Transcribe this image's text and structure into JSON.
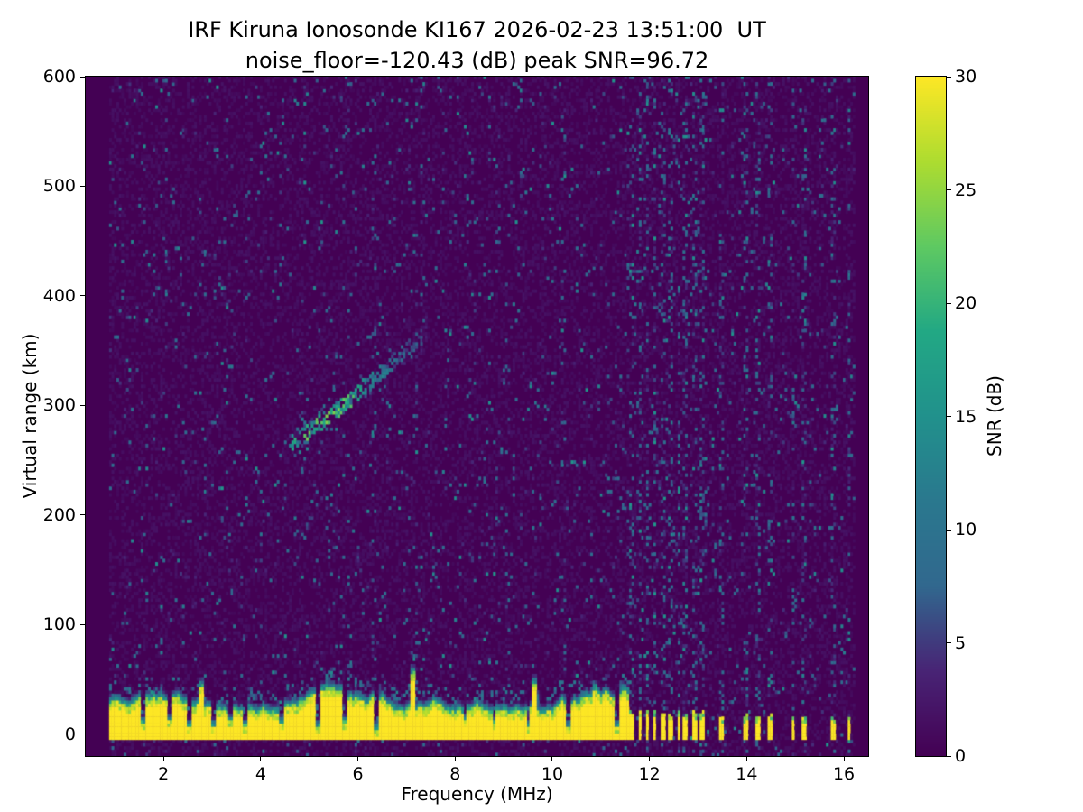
{
  "chart_data": {
    "type": "heatmap",
    "title": "IRF Kiruna Ionosonde KI167 2026-02-23 13:51:00  UT",
    "subtitle": "noise_floor=-120.43 (dB) peak SNR=96.72",
    "xlabel": "Frequency (MHz)",
    "ylabel": "Virtual range (km)",
    "colorbar_label": "SNR (dB)",
    "colormap": "viridis",
    "xlim": [
      0.4,
      16.5
    ],
    "ylim": [
      -20,
      600
    ],
    "xticks": [
      2,
      4,
      6,
      8,
      10,
      12,
      14,
      16
    ],
    "yticks": [
      0,
      100,
      200,
      300,
      400,
      500,
      600
    ],
    "colorbar_ticks": [
      0,
      5,
      10,
      15,
      20,
      25,
      30
    ],
    "colorbar_range": [
      0,
      30
    ],
    "grid": false,
    "colors": {
      "background_min": "#440154",
      "peak_max": "#fde725"
    },
    "values": {
      "noise_floor_db": -120.43,
      "peak_snr_db": 96.72
    },
    "features": {
      "data_extent_mhz": [
        0.88,
        16.22
      ],
      "ground_clutter_band": {
        "freq_mhz": [
          0.88,
          11.56
        ],
        "range_km": [
          -6,
          30
        ],
        "snr_db": 30
      },
      "echo_trace": {
        "points_mhz_km": [
          [
            4.55,
            262
          ],
          [
            5.0,
            276
          ],
          [
            5.5,
            293
          ],
          [
            6.0,
            311
          ],
          [
            6.5,
            330
          ],
          [
            7.0,
            350
          ],
          [
            7.4,
            366
          ]
        ],
        "peak_mhz": 5.35,
        "peak_snr_db": 20
      },
      "rfi_stripes": {
        "dense_mhz": [
          11.62,
          11.78,
          11.93,
          12.08,
          12.25,
          12.42,
          12.58,
          12.72,
          12.9,
          13.05
        ],
        "sparse_mhz": [
          13.45,
          13.97,
          14.2,
          14.45,
          14.94,
          15.16,
          15.75,
          16.08
        ]
      },
      "weak_noise_columns_mhz": [
        6.3,
        7.18,
        9.05,
        10.2
      ],
      "clutter_notches_mhz": [
        1.55,
        2.1,
        2.5,
        3.0,
        3.35,
        3.65,
        4.4,
        5.15,
        5.7,
        6.35,
        8.2,
        8.8,
        9.5,
        10.3,
        10.9,
        11.3
      ],
      "clutter_spikes": [
        {
          "f_mhz": 2.75,
          "top_km": 42
        },
        {
          "f_mhz": 7.1,
          "top_km": 54
        },
        {
          "f_mhz": 9.6,
          "top_km": 45
        },
        {
          "f_mhz": 10.85,
          "top_km": 40
        }
      ]
    }
  }
}
